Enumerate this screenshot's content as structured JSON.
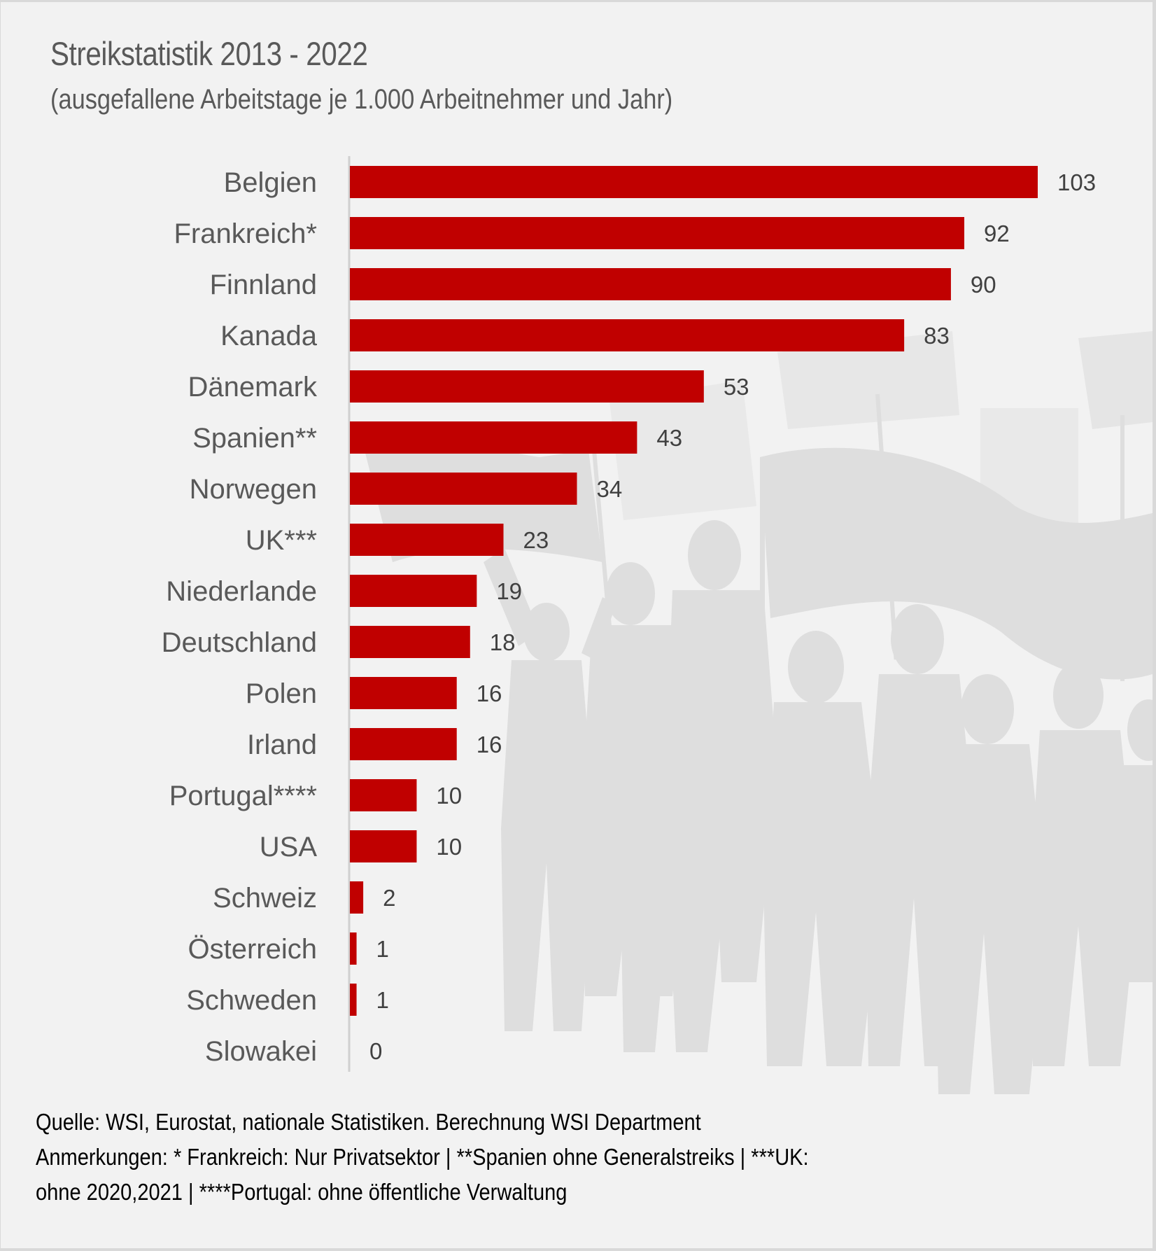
{
  "chart_data": {
    "type": "bar",
    "orientation": "horizontal",
    "title": "Streikstatistik 2013 - 2022",
    "subtitle": "(ausgefallene Arbeitstage je 1.000 Arbeitnehmer und Jahr)",
    "xlabel": "",
    "ylabel": "",
    "xlim": [
      0,
      103
    ],
    "grid": false,
    "legend": "none",
    "bar_color": "#c00000",
    "categories": [
      "Belgien",
      "Frankreich*",
      "Finnland",
      "Kanada",
      "Dänemark",
      "Spanien**",
      "Norwegen",
      "UK***",
      "Niederlande",
      "Deutschland",
      "Polen",
      "Irland",
      "Portugal****",
      "USA",
      "Schweiz",
      "Österreich",
      "Schweden",
      "Slowakei"
    ],
    "values": [
      103,
      92,
      90,
      83,
      53,
      43,
      34,
      23,
      19,
      18,
      16,
      16,
      10,
      10,
      2,
      1,
      1,
      0
    ],
    "data_labels": [
      "103",
      "92",
      "90",
      "83",
      "53",
      "43",
      "34",
      "23",
      "19",
      "18",
      "16",
      "16",
      "10",
      "10",
      "2",
      "1",
      "1",
      "0"
    ]
  },
  "footer": {
    "source": "Quelle: WSI, Eurostat, nationale Statistiken. Berechnung WSI Department",
    "notes_line1": "Anmerkungen: * Frankreich: Nur Privatsektor | **Spanien ohne Generalstreiks | ***UK:",
    "notes_line2": "ohne 2020,2021 | ****Portugal: ohne öffentliche Verwaltung"
  },
  "background_image": "protest-crowd-silhouette"
}
